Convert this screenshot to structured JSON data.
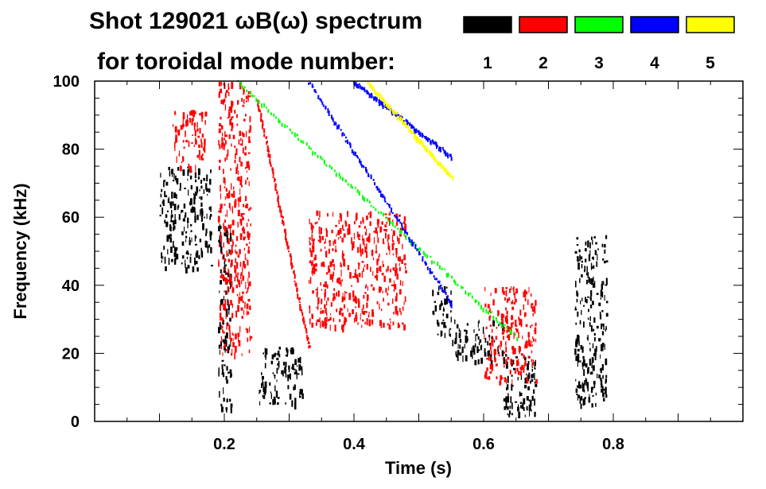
{
  "chart_data": {
    "type": "heatmap",
    "title_line1": "Shot 129021 ωB(ω) spectrum",
    "title_line2": "for toroidal mode number:",
    "xlabel": "Time (s)",
    "ylabel": "Frequency (kHz)",
    "xlim": [
      0.0,
      1.0
    ],
    "ylim": [
      0,
      100
    ],
    "x_ticks": [
      0.2,
      0.4,
      0.6,
      0.8
    ],
    "x_tick_labels": [
      "0.2",
      "0.4",
      "0.6",
      "0.8"
    ],
    "y_ticks": [
      0,
      20,
      40,
      60,
      80,
      100
    ],
    "y_tick_labels": [
      "0",
      "20",
      "40",
      "60",
      "80",
      "100"
    ],
    "grid": false,
    "legend_placement": "top-right",
    "legend": [
      {
        "label": "1",
        "color": "#000000"
      },
      {
        "label": "2",
        "color": "#ff0000"
      },
      {
        "label": "3",
        "color": "#00ff00"
      },
      {
        "label": "4",
        "color": "#0000ff"
      },
      {
        "label": "5",
        "color": "#ffff00"
      }
    ],
    "regions": [
      {
        "mode": "1",
        "t": [
          0.1,
          0.18
        ],
        "f": [
          45,
          75
        ]
      },
      {
        "mode": "1",
        "t": [
          0.19,
          0.21
        ],
        "f": [
          2,
          60
        ]
      },
      {
        "mode": "1",
        "t": [
          0.25,
          0.32
        ],
        "f": [
          5,
          22
        ]
      },
      {
        "mode": "1",
        "t": [
          0.52,
          0.55
        ],
        "f": [
          25,
          40
        ]
      },
      {
        "mode": "1",
        "t": [
          0.55,
          0.63
        ],
        "f": [
          18,
          30
        ]
      },
      {
        "mode": "1",
        "t": [
          0.63,
          0.68
        ],
        "f": [
          2,
          20
        ]
      },
      {
        "mode": "1",
        "t": [
          0.74,
          0.79
        ],
        "f": [
          5,
          55
        ]
      },
      {
        "mode": "2",
        "t": [
          0.12,
          0.17
        ],
        "f": [
          75,
          92
        ]
      },
      {
        "mode": "2",
        "t": [
          0.19,
          0.24
        ],
        "f": [
          20,
          100
        ]
      },
      {
        "mode": "2",
        "t": [
          0.33,
          0.48
        ],
        "f": [
          28,
          62
        ]
      },
      {
        "mode": "2",
        "t": [
          0.6,
          0.68
        ],
        "f": [
          12,
          40
        ]
      }
    ],
    "bands": [
      {
        "mode": "2",
        "t": [
          0.25,
          0.33
        ],
        "f": [
          95,
          22
        ]
      },
      {
        "mode": "3",
        "t": [
          0.22,
          0.65
        ],
        "f": [
          100,
          25
        ]
      },
      {
        "mode": "4",
        "t": [
          0.33,
          0.55
        ],
        "f": [
          100,
          35
        ]
      },
      {
        "mode": "4",
        "t": [
          0.4,
          0.55
        ],
        "f": [
          100,
          78
        ]
      },
      {
        "mode": "5",
        "t": [
          0.42,
          0.55
        ],
        "f": [
          100,
          72
        ]
      }
    ]
  }
}
